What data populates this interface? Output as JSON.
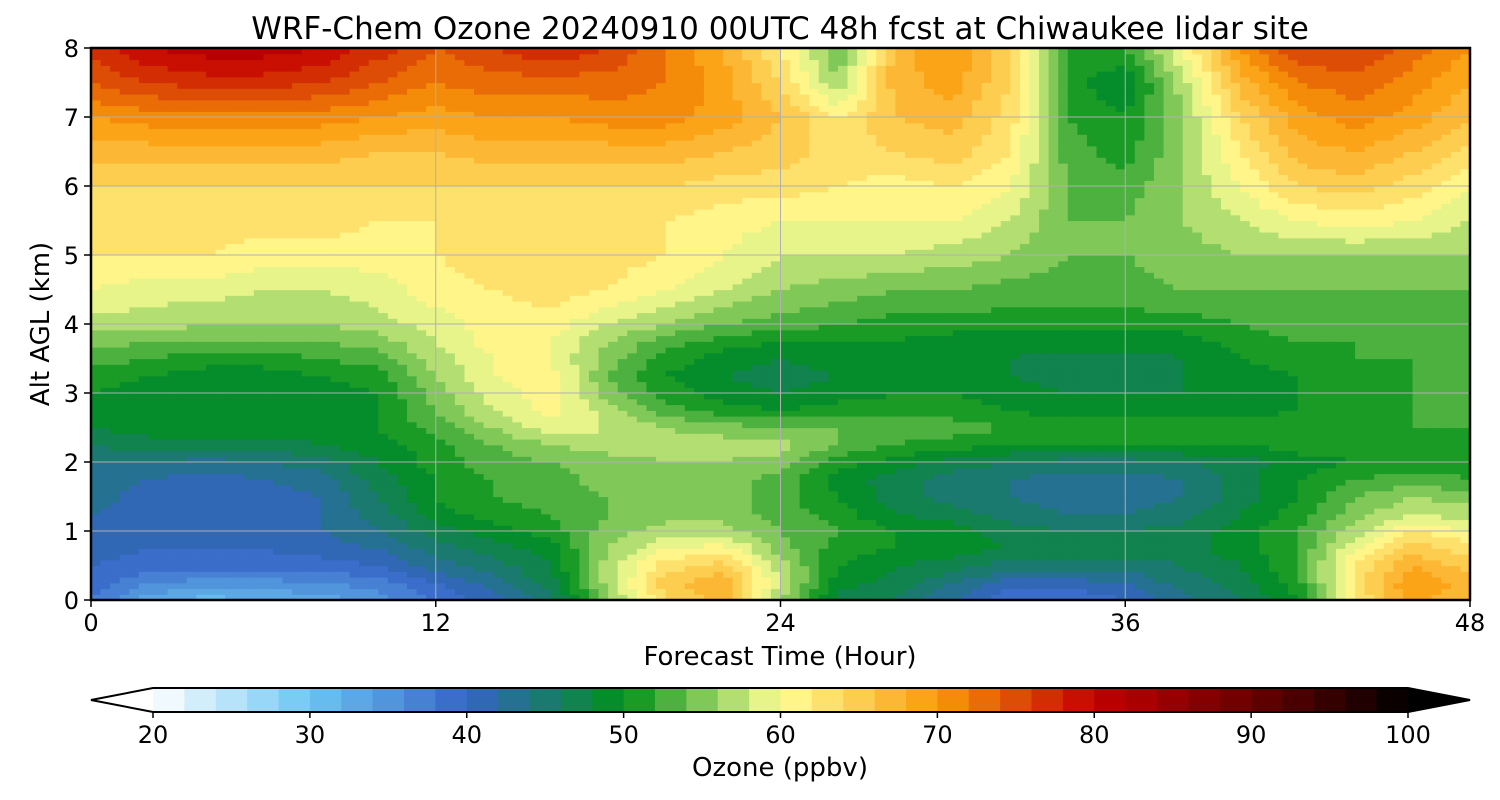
{
  "chart_data": {
    "type": "heatmap",
    "title": "WRF-Chem Ozone  20240910 00UTC 48h fcst at Chiwaukee lidar site",
    "xlabel": "Forecast Time (Hour)",
    "ylabel": "Alt AGL (km)",
    "xlim": [
      0,
      48
    ],
    "ylim": [
      0,
      8
    ],
    "x_ticks": [
      "0",
      "12",
      "24",
      "36",
      "48"
    ],
    "y_ticks": [
      "0",
      "1",
      "2",
      "3",
      "4",
      "5",
      "6",
      "7",
      "8"
    ],
    "grid": true,
    "x": [
      0,
      2,
      4,
      6,
      8,
      10,
      12,
      14,
      16,
      18,
      20,
      22,
      24,
      26,
      28,
      30,
      32,
      34,
      36,
      38,
      40,
      42,
      44,
      46,
      48
    ],
    "y": [
      0,
      0.25,
      0.5,
      0.75,
      1,
      1.25,
      1.5,
      1.75,
      2,
      2.25,
      2.5,
      2.75,
      3,
      3.25,
      3.5,
      3.75,
      4,
      4.5,
      5,
      5.5,
      6,
      6.5,
      7,
      7.5,
      8
    ],
    "z": [
      [
        38,
        33,
        31,
        32,
        33,
        35,
        38,
        41,
        45,
        55,
        64,
        67,
        56,
        47,
        46,
        42,
        38,
        38,
        40,
        43,
        46,
        50,
        62,
        69,
        66
      ],
      [
        39,
        36,
        35,
        35,
        36,
        37,
        40,
        43,
        47,
        57,
        65,
        68,
        58,
        49,
        47,
        44,
        41,
        41,
        42,
        45,
        47,
        51,
        63,
        70,
        67
      ],
      [
        40,
        39,
        39,
        39,
        39,
        40,
        43,
        45,
        48,
        57,
        63,
        65,
        57,
        50,
        48,
        47,
        45,
        45,
        45,
        46,
        48,
        52,
        62,
        68,
        65
      ],
      [
        41,
        40,
        40,
        40,
        41,
        42,
        45,
        47,
        49,
        56,
        60,
        61,
        55,
        51,
        50,
        49,
        48,
        48,
        47,
        47,
        49,
        52,
        60,
        65,
        63
      ],
      [
        42,
        41,
        41,
        41,
        42,
        44,
        47,
        49,
        51,
        55,
        57,
        57,
        54,
        52,
        50,
        49,
        47,
        46,
        46,
        47,
        49,
        52,
        57,
        62,
        60
      ],
      [
        42,
        41,
        40,
        41,
        42,
        45,
        49,
        51,
        52,
        54,
        55,
        55,
        53,
        51,
        48,
        47,
        45,
        44,
        44,
        45,
        48,
        51,
        55,
        58,
        57
      ],
      [
        43,
        41,
        40,
        41,
        42,
        46,
        50,
        52,
        53,
        54,
        55,
        55,
        53,
        50,
        47,
        45,
        44,
        43,
        43,
        44,
        47,
        50,
        54,
        56,
        55
      ],
      [
        43,
        42,
        41,
        42,
        43,
        47,
        50,
        52,
        53,
        55,
        55,
        55,
        53,
        49,
        47,
        45,
        44,
        43,
        43,
        44,
        47,
        50,
        52,
        53,
        52
      ],
      [
        44,
        44,
        43,
        44,
        45,
        48,
        51,
        53,
        54,
        55,
        56,
        56,
        55,
        51,
        49,
        47,
        46,
        45,
        45,
        46,
        47,
        49,
        50,
        51,
        51
      ],
      [
        46,
        47,
        47,
        47,
        48,
        49,
        51,
        54,
        56,
        57,
        57,
        57,
        57,
        54,
        52,
        51,
        50,
        50,
        50,
        50,
        50,
        51,
        51,
        51,
        51
      ],
      [
        48,
        49,
        49,
        49,
        49,
        50,
        53,
        56,
        59,
        58,
        56,
        55,
        54,
        54,
        53,
        53,
        52,
        52,
        52,
        52,
        52,
        52,
        52,
        52,
        52
      ],
      [
        49,
        49,
        49,
        49,
        49,
        50,
        54,
        58,
        61,
        57,
        53,
        51,
        50,
        51,
        51,
        51,
        50,
        49,
        49,
        49,
        49,
        50,
        51,
        52,
        52
      ],
      [
        50,
        49,
        48,
        48,
        49,
        50,
        55,
        59,
        61,
        55,
        51,
        49,
        48,
        49,
        50,
        50,
        49,
        48,
        48,
        48,
        49,
        50,
        51,
        52,
        52
      ],
      [
        51,
        50,
        49,
        49,
        50,
        51,
        56,
        60,
        61,
        54,
        50,
        48,
        47,
        48,
        49,
        49,
        48,
        47,
        47,
        48,
        49,
        50,
        51,
        52,
        52
      ],
      [
        53,
        52,
        51,
        51,
        52,
        53,
        57,
        60,
        60,
        55,
        51,
        49,
        48,
        49,
        49,
        49,
        48,
        47,
        47,
        48,
        50,
        51,
        52,
        52,
        52
      ],
      [
        55,
        54,
        54,
        54,
        54,
        55,
        58,
        61,
        60,
        56,
        53,
        51,
        50,
        50,
        50,
        49,
        49,
        49,
        49,
        49,
        51,
        52,
        52,
        52,
        52
      ],
      [
        57,
        57,
        56,
        56,
        56,
        57,
        59,
        61,
        61,
        58,
        56,
        54,
        53,
        52,
        51,
        51,
        51,
        51,
        51,
        51,
        52,
        53,
        53,
        53,
        53
      ],
      [
        60,
        59,
        59,
        58,
        58,
        59,
        61,
        62,
        63,
        62,
        60,
        58,
        56,
        55,
        54,
        54,
        53,
        53,
        53,
        54,
        54,
        54,
        54,
        54,
        54
      ],
      [
        62,
        62,
        62,
        61,
        61,
        61,
        62,
        63,
        64,
        63,
        62,
        60,
        58,
        58,
        58,
        57,
        56,
        54,
        54,
        55,
        56,
        56,
        56,
        56,
        56
      ],
      [
        63,
        63,
        63,
        63,
        63,
        62,
        62,
        63,
        63,
        63,
        62,
        61,
        60,
        60,
        60,
        60,
        58,
        54,
        54,
        56,
        58,
        60,
        61,
        60,
        58
      ],
      [
        64,
        64,
        64,
        64,
        64,
        64,
        64,
        64,
        64,
        64,
        64,
        63,
        63,
        62,
        61,
        62,
        60,
        54,
        53,
        56,
        60,
        64,
        65,
        63,
        60
      ],
      [
        67,
        67,
        67,
        67,
        67,
        66,
        66,
        67,
        67,
        67,
        67,
        66,
        65,
        63,
        64,
        65,
        62,
        53,
        51,
        56,
        62,
        67,
        68,
        66,
        63
      ],
      [
        70,
        71,
        71,
        71,
        71,
        70,
        69,
        70,
        70,
        71,
        71,
        69,
        66,
        62,
        66,
        67,
        63,
        52,
        50,
        56,
        64,
        69,
        71,
        69,
        66
      ],
      [
        74,
        76,
        77,
        77,
        76,
        74,
        72,
        73,
        73,
        73,
        72,
        69,
        64,
        56,
        67,
        69,
        64,
        51,
        48,
        57,
        67,
        72,
        73,
        71,
        68
      ],
      [
        77,
        80,
        81,
        81,
        80,
        77,
        74,
        76,
        78,
        76,
        72,
        68,
        62,
        54,
        67,
        70,
        64,
        52,
        52,
        60,
        70,
        76,
        76,
        73,
        70
      ]
    ],
    "colorbar": {
      "label": "Ozone  (ppbv)",
      "min": 20,
      "max": 100,
      "ticks": [
        "20",
        "30",
        "40",
        "50",
        "60",
        "70",
        "80",
        "90",
        "100"
      ],
      "extend": "both",
      "stops": [
        [
          20,
          "#ffffff"
        ],
        [
          30,
          "#6cc6f3"
        ],
        [
          40,
          "#3563c6"
        ],
        [
          50,
          "#00901a"
        ],
        [
          60,
          "#ffff96"
        ],
        [
          70,
          "#fa9a0a"
        ],
        [
          80,
          "#c20000"
        ],
        [
          90,
          "#6a0000"
        ],
        [
          100,
          "#000000"
        ]
      ]
    }
  }
}
